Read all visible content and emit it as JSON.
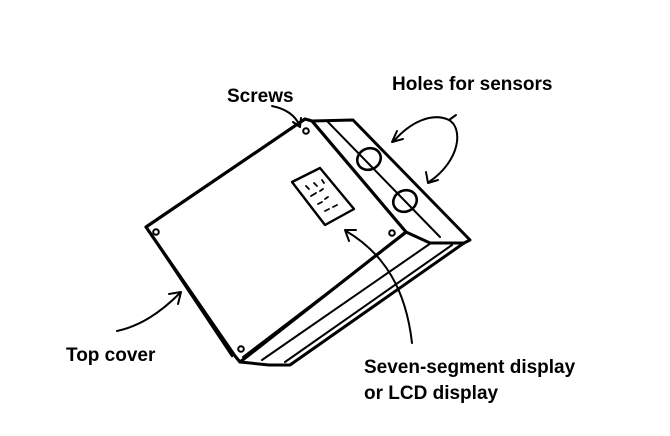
{
  "diagram": {
    "labels": {
      "screws": "Screws",
      "holes": "Holes for sensors",
      "top_cover": "Top cover",
      "display_line1": "Seven-segment display",
      "display_line2": "or LCD display"
    }
  }
}
